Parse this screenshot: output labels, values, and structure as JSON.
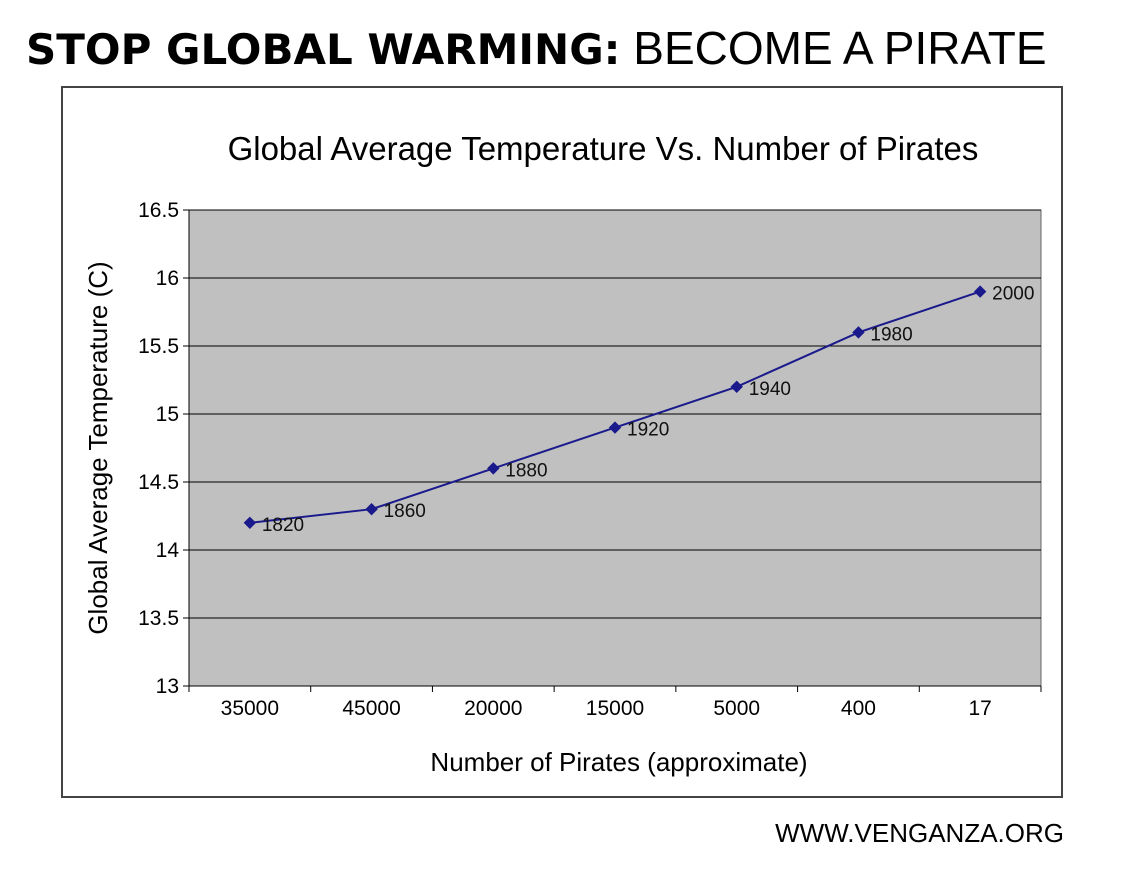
{
  "headline": {
    "bold": "STOP GLOBAL WARMING:",
    "normal": " BECOME A PIRATE"
  },
  "footer": {
    "url": "WWW.VENGANZA.ORG"
  },
  "colors": {
    "plot_bg": "#c0c0c0",
    "series": "#1a1a8c",
    "grid": "#000000"
  },
  "chart_data": {
    "type": "line",
    "title": "Global Average Temperature Vs. Number of Pirates",
    "xlabel": "Number of Pirates (approximate)",
    "ylabel": "Global Average Temperature (C)",
    "categories": [
      "35000",
      "45000",
      "20000",
      "15000",
      "5000",
      "400",
      "17"
    ],
    "ylim": [
      13,
      16.5
    ],
    "yticks": [
      "13",
      "13.5",
      "14",
      "14.5",
      "15",
      "15.5",
      "16",
      "16.5"
    ],
    "grid": true,
    "series": [
      {
        "values": [
          14.2,
          14.3,
          14.6,
          14.9,
          15.2,
          15.6,
          15.9
        ],
        "point_labels": [
          "1820",
          "1860",
          "1880",
          "1920",
          "1940",
          "1980",
          "2000"
        ]
      }
    ]
  }
}
